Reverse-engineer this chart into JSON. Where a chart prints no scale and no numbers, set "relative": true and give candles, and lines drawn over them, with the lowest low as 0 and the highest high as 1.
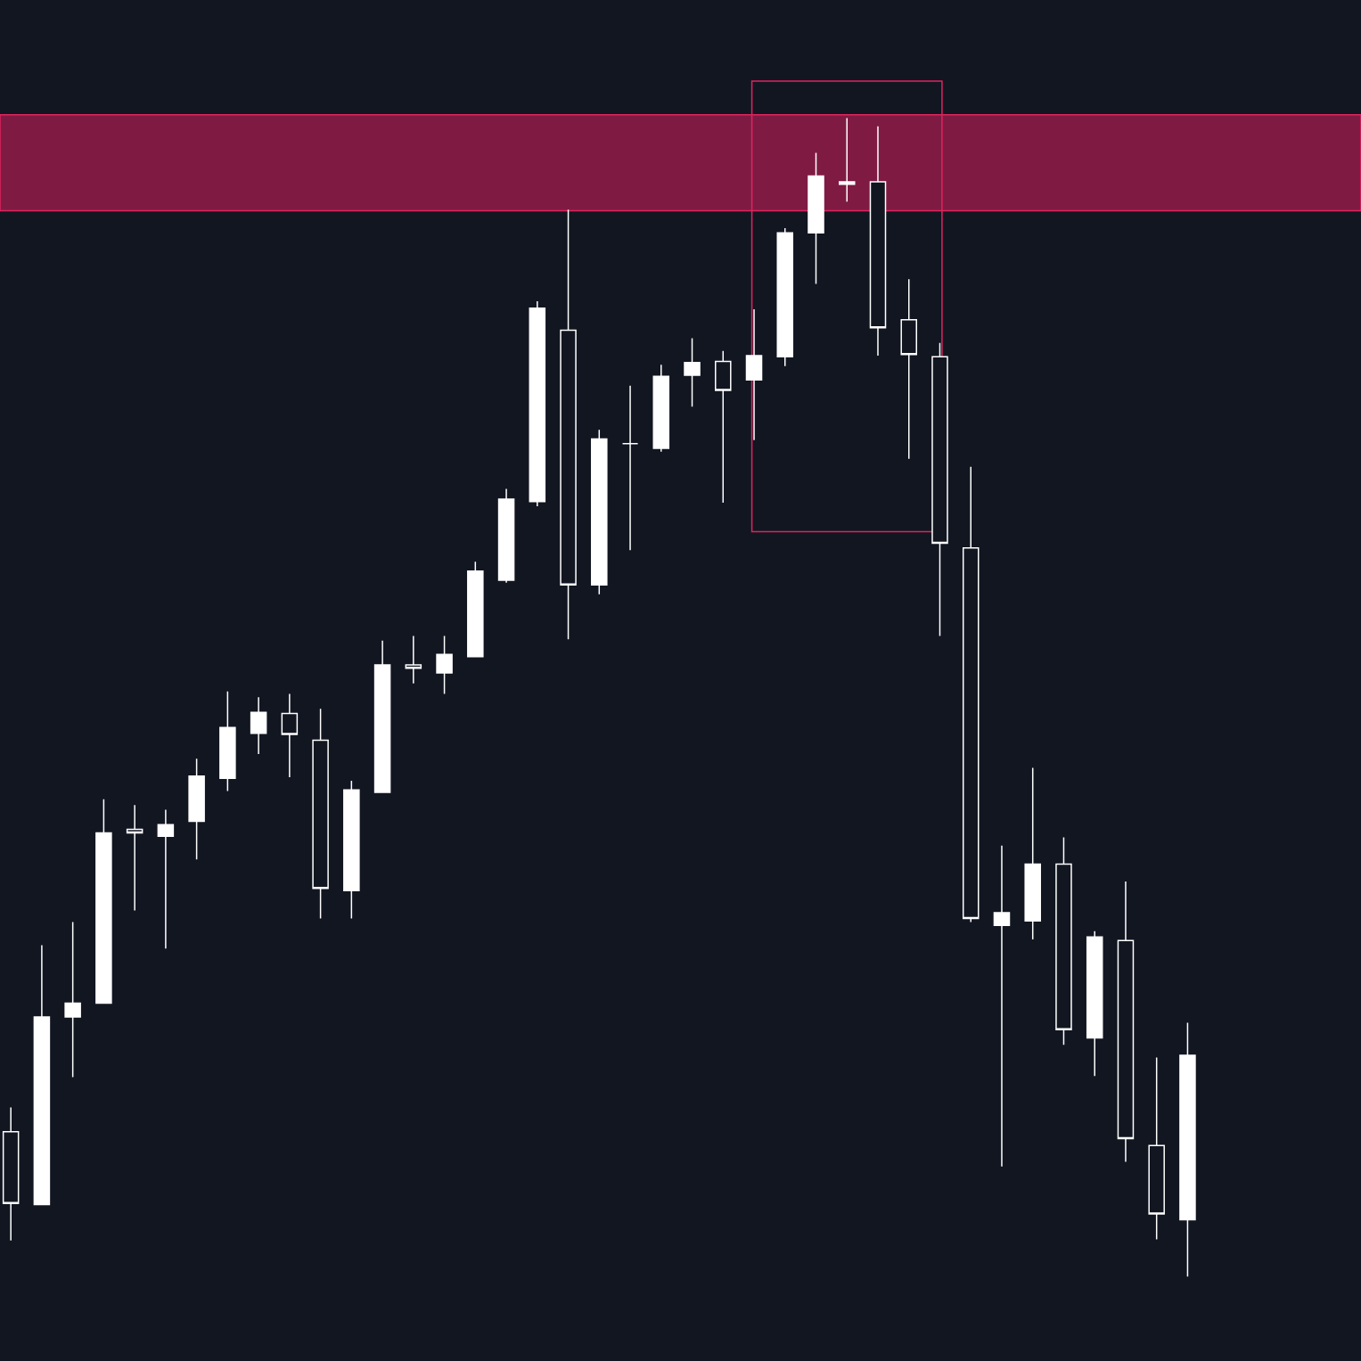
{
  "chart_data": {
    "type": "candlestick",
    "relative": true,
    "categories": [
      null,
      null,
      null,
      null,
      null,
      null,
      null,
      null,
      null,
      null,
      null,
      null,
      null,
      null,
      null,
      null,
      null,
      null,
      null,
      null,
      null,
      null,
      null,
      null,
      null,
      null,
      null,
      null,
      null,
      null,
      null,
      null,
      null,
      null,
      null,
      null,
      null,
      null,
      null
    ],
    "series": [
      {
        "color": "#ffffff",
        "ohlc": [
          [
            0.125,
            0.146,
            0.031,
            0.063
          ],
          [
            0.062,
            0.286,
            0.062,
            0.224
          ],
          [
            0.224,
            0.306,
            0.172,
            0.236
          ],
          [
            0.236,
            0.412,
            0.236,
            0.383
          ],
          [
            0.386,
            0.407,
            0.316,
            0.383
          ],
          [
            0.38,
            0.403,
            0.283,
            0.39
          ],
          [
            0.393,
            0.447,
            0.36,
            0.432
          ],
          [
            0.43,
            0.505,
            0.419,
            0.474
          ],
          [
            0.469,
            0.5,
            0.451,
            0.487
          ],
          [
            0.486,
            0.503,
            0.431,
            0.468
          ],
          [
            0.463,
            0.49,
            0.309,
            0.335
          ],
          [
            0.333,
            0.428,
            0.309,
            0.42
          ],
          [
            0.418,
            0.549,
            0.418,
            0.528
          ],
          [
            0.528,
            0.553,
            0.512,
            0.525
          ],
          [
            0.521,
            0.553,
            0.503,
            0.537
          ],
          [
            0.535,
            0.617,
            0.535,
            0.609
          ],
          [
            0.601,
            0.68,
            0.599,
            0.671
          ],
          [
            0.669,
            0.842,
            0.665,
            0.836
          ],
          [
            0.817,
            0.921,
            0.55,
            0.597
          ],
          [
            0.597,
            0.731,
            0.589,
            0.723
          ],
          [
            0.719,
            0.769,
            0.627,
            0.719
          ],
          [
            0.715,
            0.787,
            0.712,
            0.777
          ],
          [
            0.778,
            0.81,
            0.751,
            0.789
          ],
          [
            0.79,
            0.799,
            0.668,
            0.765
          ],
          [
            0.774,
            0.835,
            0.722,
            0.795
          ],
          [
            0.794,
            0.905,
            0.786,
            0.901
          ],
          [
            0.901,
            0.97,
            0.857,
            0.95
          ],
          [
            0.943,
            1.0,
            0.928,
            0.945
          ],
          [
            0.945,
            0.993,
            0.795,
            0.819
          ],
          [
            0.826,
            0.861,
            0.706,
            0.796
          ],
          [
            0.794,
            0.806,
            0.553,
            0.633
          ],
          [
            0.629,
            0.699,
            0.306,
            0.309
          ],
          [
            0.303,
            0.372,
            0.095,
            0.314
          ],
          [
            0.307,
            0.439,
            0.291,
            0.356
          ],
          [
            0.356,
            0.379,
            0.2,
            0.213
          ],
          [
            0.206,
            0.298,
            0.173,
            0.293
          ],
          [
            0.29,
            0.341,
            0.099,
            0.119
          ],
          [
            0.113,
            0.189,
            0.032,
            0.054
          ],
          [
            0.049,
            0.219,
            0.0,
            0.191
          ]
        ]
      }
    ],
    "bands": [
      {
        "axis": "y",
        "from": 0.92,
        "to": 1.003,
        "color": "#7f1b42"
      }
    ],
    "grid": false
  }
}
